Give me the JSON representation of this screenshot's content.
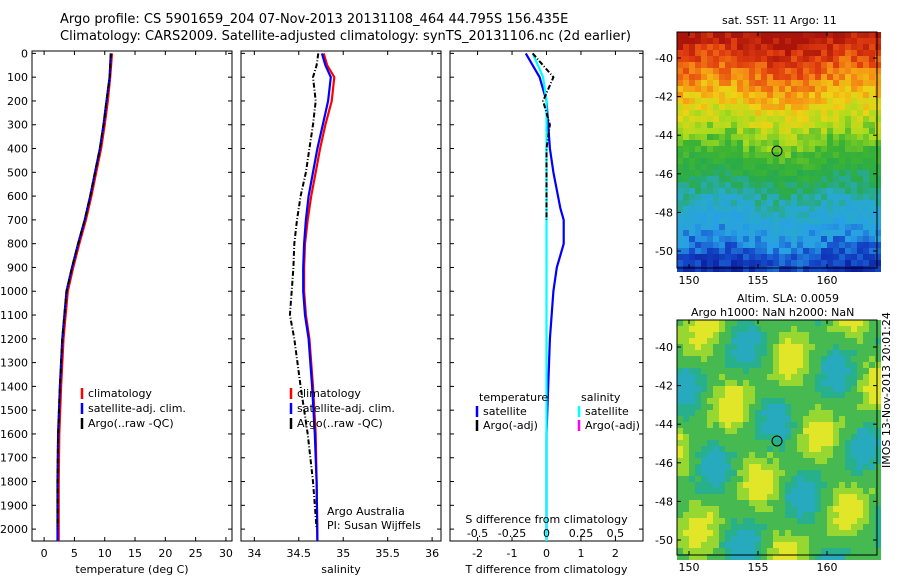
{
  "header": {
    "line1": "Argo profile: CS 5901659_204 07-Nov-2013 20131108_464 44.795S 156.435E",
    "line2": "Climatology: CARS2009. Satellite-adjusted climatology: synTS_20131106.nc (2d earlier)"
  },
  "colors": {
    "climatology": "#ff0000",
    "satellite": "#0000ff",
    "argo": "#000000",
    "sal_satellite": "#00ffff",
    "sal_argo": "#ff00ff"
  },
  "credits": {
    "org": "Argo Australia",
    "pi": "PI: Susan Wijffels"
  },
  "diff_top_label": "S difference from climatology",
  "side_stamp": "IMOS 13-Nov-2013 20:01:24",
  "map_sst": {
    "title": "sat. SST: 11 Argo: 11",
    "xticks": [
      "150",
      "155",
      "160"
    ],
    "yticks": [
      "-40",
      "-42",
      "-44",
      "-46",
      "-48",
      "-50"
    ]
  },
  "map_sla": {
    "title1": "Altim. SLA: 0.0059",
    "title2": "Argo h1000: NaN h2000: NaN",
    "xticks": [
      "150",
      "155",
      "160"
    ],
    "yticks": [
      "-40",
      "-42",
      "-44",
      "-46",
      "-48",
      "-50"
    ]
  },
  "chart_data": [
    {
      "type": "line",
      "xlabel": "temperature (deg C)",
      "ylabel": "",
      "xlim": [
        -2,
        31
      ],
      "ylim": [
        2050,
        0
      ],
      "xticks": [
        "0",
        "5",
        "10",
        "15",
        "20",
        "25",
        "30"
      ],
      "yticks": [
        "0",
        "100",
        "200",
        "300",
        "400",
        "500",
        "600",
        "700",
        "800",
        "900",
        "1000",
        "1100",
        "1200",
        "1300",
        "1400",
        "1500",
        "1600",
        "1700",
        "1800",
        "1900",
        "2000"
      ],
      "legend": [
        "climatology",
        "satellite-adj. clim.",
        "Argo(..raw -QC)"
      ],
      "series": [
        {
          "name": "climatology",
          "color": "#ff0000",
          "x": [
            11.2,
            10.9,
            10.5,
            10.0,
            9.4,
            8.6,
            7.8,
            6.9,
            5.8,
            4.8,
            3.9,
            3.2,
            2.8,
            2.5,
            2.4,
            2.4
          ],
          "y": [
            0,
            100,
            200,
            300,
            400,
            500,
            600,
            700,
            800,
            900,
            1000,
            1200,
            1400,
            1600,
            1800,
            2050
          ]
        },
        {
          "name": "satellite-adj. clim.",
          "color": "#0000ff",
          "x": [
            11.0,
            10.8,
            10.3,
            9.8,
            9.2,
            8.4,
            7.6,
            6.7,
            5.6,
            4.6,
            3.7,
            3.0,
            2.6,
            2.3,
            2.2,
            2.2
          ],
          "y": [
            0,
            100,
            200,
            300,
            400,
            500,
            600,
            700,
            800,
            900,
            1000,
            1200,
            1400,
            1600,
            1800,
            2050
          ]
        },
        {
          "name": "Argo(..raw -QC)",
          "color": "#000000",
          "x": [
            11.0,
            10.8,
            10.3,
            9.8,
            9.2,
            8.4,
            7.6,
            6.7,
            5.6,
            4.6,
            3.7,
            3.0,
            2.6,
            2.3,
            2.2,
            2.2
          ],
          "y": [
            0,
            100,
            200,
            300,
            400,
            500,
            600,
            700,
            800,
            900,
            1000,
            1200,
            1400,
            1600,
            1800,
            2000
          ]
        }
      ]
    },
    {
      "type": "line",
      "xlabel": "salinity",
      "xlim": [
        33.85,
        36.1
      ],
      "ylim": [
        2050,
        0
      ],
      "xticks": [
        "34",
        "34.5",
        "35",
        "35.5",
        "36"
      ],
      "legend": [
        "climatology",
        "satellite-adj. clim.",
        "Argo(..raw -QC)"
      ],
      "series": [
        {
          "name": "climatology",
          "color": "#ff0000",
          "x": [
            34.78,
            34.82,
            34.9,
            34.87,
            34.8,
            34.74,
            34.69,
            34.64,
            34.6,
            34.57,
            34.56,
            34.56,
            34.58,
            34.62,
            34.66,
            34.69,
            34.7,
            34.71
          ],
          "y": [
            0,
            50,
            100,
            200,
            300,
            400,
            500,
            600,
            700,
            800,
            900,
            1000,
            1100,
            1200,
            1400,
            1600,
            1800,
            2050
          ]
        },
        {
          "name": "satellite-adj. clim.",
          "color": "#0000ff",
          "x": [
            34.76,
            34.8,
            34.86,
            34.83,
            34.77,
            34.71,
            34.66,
            34.61,
            34.58,
            34.56,
            34.55,
            34.55,
            34.57,
            34.61,
            34.65,
            34.68,
            34.7,
            34.71
          ],
          "y": [
            0,
            50,
            100,
            200,
            300,
            400,
            500,
            600,
            700,
            800,
            900,
            1000,
            1100,
            1200,
            1400,
            1600,
            1800,
            2050
          ]
        },
        {
          "name": "Argo(..raw -QC)",
          "color": "#000000",
          "x": [
            34.72,
            34.7,
            34.66,
            34.69,
            34.66,
            34.62,
            34.58,
            34.52,
            34.48,
            34.45,
            34.44,
            34.42,
            34.4,
            34.45,
            34.52,
            34.6,
            34.66,
            34.7
          ],
          "y": [
            0,
            50,
            100,
            200,
            300,
            400,
            500,
            600,
            700,
            800,
            900,
            1000,
            1100,
            1200,
            1400,
            1600,
            1800,
            2000
          ]
        }
      ]
    },
    {
      "type": "line",
      "xlabel": "T difference from climatology",
      "xlabel_top": "S difference from climatology",
      "xlim": [
        -2.8,
        2.8
      ],
      "ylim": [
        2050,
        0
      ],
      "xticks_bottom": [
        "-2",
        "-1",
        "0",
        "1",
        "2"
      ],
      "xticks_top": [
        "-0.5",
        "-0.25",
        "0",
        "0.25",
        "0.5"
      ],
      "legend_temperature": [
        "temperature",
        "satellite",
        "Argo(-adj)"
      ],
      "legend_salinity": [
        "salinity",
        "satellite",
        "Argo(-adj)"
      ],
      "series": [
        {
          "name": "satellite",
          "color": "#0000ff",
          "x": [
            -0.6,
            -0.2,
            0.0,
            0.1,
            0.2,
            0.4,
            0.5,
            0.5,
            0.5,
            0.4,
            0.3,
            0.2,
            0.1,
            0.0,
            0.0
          ],
          "y": [
            0,
            100,
            200,
            400,
            500,
            650,
            700,
            750,
            800,
            850,
            900,
            1000,
            1200,
            1600,
            2050
          ]
        },
        {
          "name": "salinity satellite",
          "color": "#00ffff",
          "x": [
            -0.4,
            -0.1,
            0.0,
            0.0,
            0.0,
            0.0,
            0.0,
            0.0
          ],
          "y": [
            0,
            100,
            200,
            400,
            700,
            1000,
            1500,
            2050
          ]
        },
        {
          "name": "Argo(-adj)",
          "color": "#000000",
          "x": [
            -0.4,
            0.2,
            -0.1,
            0.1,
            0.0,
            0.0,
            0.0
          ],
          "y": [
            0,
            100,
            200,
            300,
            400,
            600,
            700
          ]
        }
      ]
    }
  ]
}
